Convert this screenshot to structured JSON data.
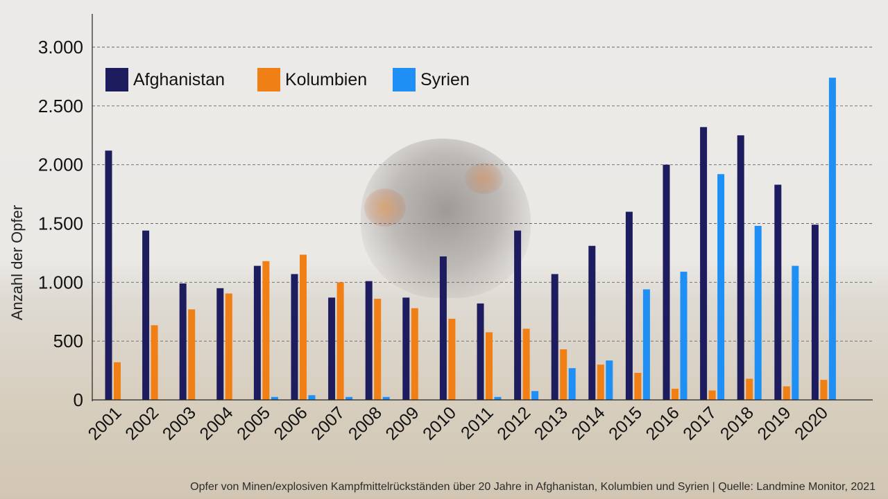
{
  "chart_data": {
    "type": "bar",
    "categories": [
      "2001",
      "2002",
      "2003",
      "2004",
      "2005",
      "2006",
      "2007",
      "2008",
      "2009",
      "2010",
      "2011",
      "2012",
      "2013",
      "2014",
      "2015",
      "2016",
      "2017",
      "2018",
      "2019",
      "2020"
    ],
    "series": [
      {
        "name": "Afghanistan",
        "color": "#1c1c5e",
        "values": [
          2120,
          1440,
          990,
          950,
          1140,
          1070,
          870,
          1010,
          870,
          1220,
          820,
          1440,
          1070,
          1310,
          1600,
          2000,
          2320,
          2250,
          1830,
          1490
        ]
      },
      {
        "name": "Kolumbien",
        "color": "#f07f16",
        "values": [
          320,
          635,
          770,
          905,
          1180,
          1235,
          1000,
          860,
          780,
          690,
          575,
          605,
          430,
          300,
          230,
          95,
          80,
          180,
          115,
          170
        ]
      },
      {
        "name": "Syrien",
        "color": "#1e8ff5",
        "values": [
          0,
          0,
          0,
          0,
          25,
          40,
          25,
          25,
          0,
          0,
          25,
          75,
          270,
          335,
          940,
          1090,
          1920,
          1480,
          1140,
          2740
        ]
      }
    ],
    "ylabel": "Anzahl der Opfer",
    "ylim": [
      0,
      3000
    ],
    "yticks": [
      0,
      500,
      1000,
      1500,
      2000,
      2500,
      3000
    ],
    "ytick_labels": [
      "0",
      "500",
      "1.000",
      "1.500",
      "2.000",
      "2.500",
      "3.000"
    ],
    "grid": "horizontal-dashed",
    "legend_position": "top-left"
  },
  "caption": "Opfer von Minen/explosiven Kampfmittelrückständen über 20 Jahre in Afghanistan, Kolumbien und Syrien  |  Quelle: Landmine Monitor, 2021"
}
